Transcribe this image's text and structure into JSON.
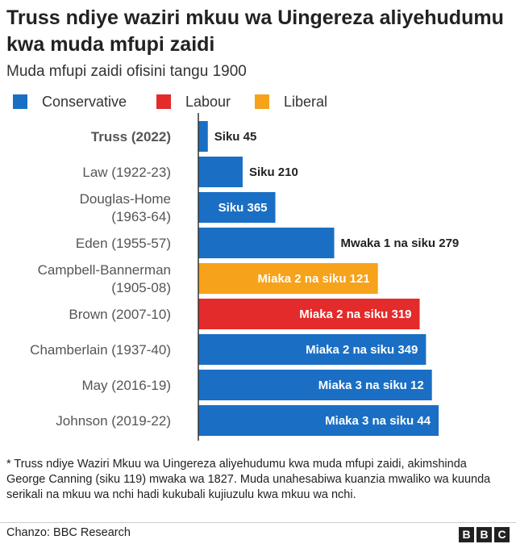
{
  "chart_data": {
    "type": "bar",
    "orientation": "horizontal",
    "title": "Truss ndiye waziri mkuu wa Uingereza aliyehudumu kwa muda mfupi zaidi",
    "subtitle": "Muda mfupi zaidi ofisini tangu 1900",
    "xlim": [
      0,
      1475
    ],
    "legend": [
      {
        "name": "Conservative",
        "color": "#1a6fc4"
      },
      {
        "name": "Labour",
        "color": "#e32b2b"
      },
      {
        "name": "Liberal",
        "color": "#f6a21b"
      }
    ],
    "categories": [
      {
        "lines": [
          "Truss (2022)"
        ],
        "bold": true
      },
      {
        "lines": [
          "Law (1922-23)"
        ]
      },
      {
        "lines": [
          "Douglas-Home",
          "(1963-64)"
        ]
      },
      {
        "lines": [
          "Eden (1955-57)"
        ]
      },
      {
        "lines": [
          "Campbell-Bannerman",
          "(1905-08)"
        ]
      },
      {
        "lines": [
          "Brown (2007-10)"
        ]
      },
      {
        "lines": [
          "Chamberlain (1937-40)"
        ]
      },
      {
        "lines": [
          "May (2016-19)"
        ]
      },
      {
        "lines": [
          "Johnson (2019-22)"
        ]
      }
    ],
    "values": [
      45,
      210,
      365,
      644,
      851,
      1049,
      1079,
      1107,
      1139
    ],
    "parties": [
      "Conservative",
      "Conservative",
      "Conservative",
      "Conservative",
      "Liberal",
      "Labour",
      "Conservative",
      "Conservative",
      "Conservative"
    ],
    "labels": [
      "Siku 45",
      "Siku 210",
      "Siku 365",
      "Mwaka 1 na siku 279",
      "Miaka 2 na siku 121",
      "Miaka 2 na siku 319",
      "Miaka 2 na siku 349",
      "Miaka 3 na siku 12",
      "Miaka 3 na siku 44"
    ]
  },
  "colors": {
    "Conservative": "#1a6fc4",
    "Labour": "#e32b2b",
    "Liberal": "#f6a21b",
    "label_outside": "#222222",
    "label_inside": "#ffffff",
    "category_text": "#555555"
  },
  "footnote": "* Truss ndiye Waziri Mkuu wa Uingereza aliyehudumu kwa muda mfupi zaidi, akimshinda George Canning (siku 119) mwaka wa 1827. Muda unahesabiwa kuanzia mwaliko wa kuunda serikali na mkuu wa nchi hadi kukubali kujiuzulu kwa mkuu wa nchi.",
  "source": "Chanzo: BBC Research",
  "logo": [
    "B",
    "B",
    "C"
  ]
}
